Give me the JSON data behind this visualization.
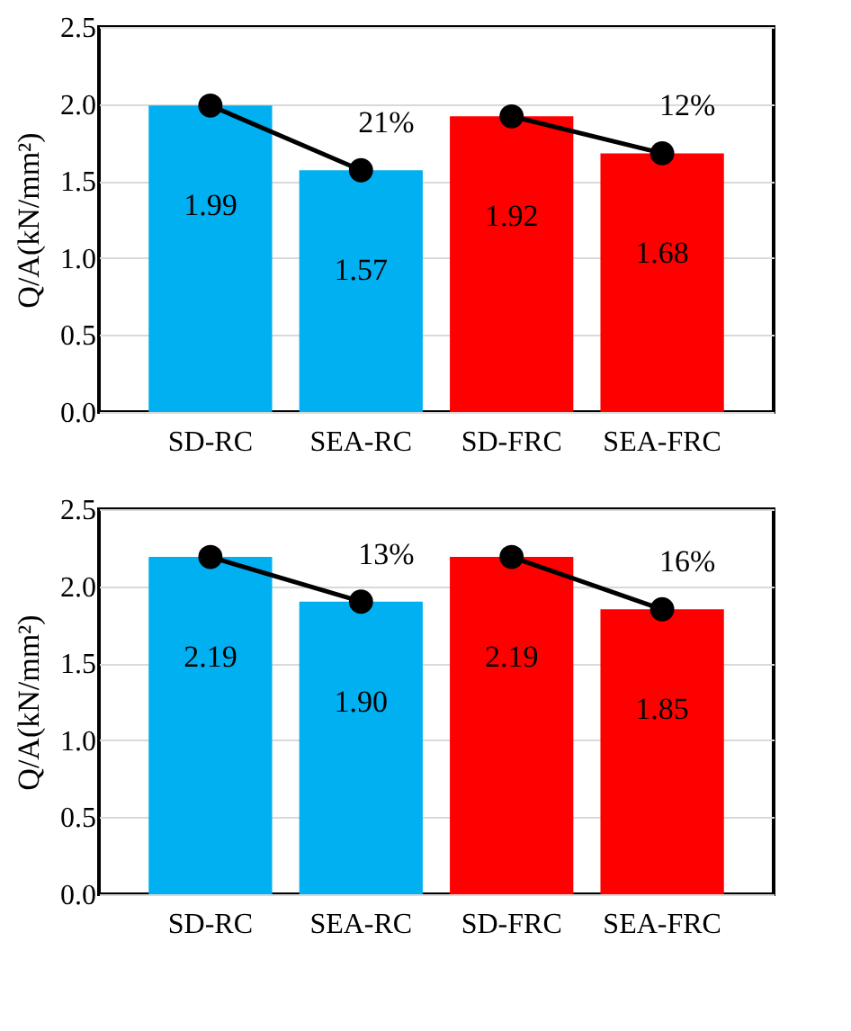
{
  "chart_data": [
    {
      "type": "bar",
      "ylabel": "Q/A(kN/mm²)",
      "categories": [
        "SD-RC",
        "SEA-RC",
        "SD-FRC",
        "SEA-FRC"
      ],
      "values": [
        1.99,
        1.57,
        1.92,
        1.68
      ],
      "value_labels": [
        "1.99",
        "1.57",
        "1.92",
        "1.68"
      ],
      "colors": [
        "#00b0f0",
        "#00b0f0",
        "#ff0000",
        "#ff0000"
      ],
      "ylim": [
        0,
        2.5
      ],
      "yticks": [
        {
          "value": 0,
          "label": "0.0"
        },
        {
          "value": 0.5,
          "label": "0.5"
        },
        {
          "value": 1,
          "label": "1.0"
        },
        {
          "value": 1.5,
          "label": "1.5"
        },
        {
          "value": 2,
          "label": "2.0"
        },
        {
          "value": 2.5,
          "label": "2.5"
        }
      ],
      "grid": "y",
      "marker": "circle",
      "series": [
        {
          "type": "line",
          "color": "#000000",
          "values": [
            1.99,
            1.57,
            null,
            null
          ]
        },
        {
          "type": "line",
          "color": "#000000",
          "values": [
            null,
            null,
            1.92,
            1.68
          ]
        }
      ],
      "annotations": [
        "21%",
        "12%"
      ]
    },
    {
      "type": "bar",
      "ylabel": "Q/A(kN/mm²)",
      "categories": [
        "SD-RC",
        "SEA-RC",
        "SD-FRC",
        "SEA-FRC"
      ],
      "values": [
        2.19,
        1.9,
        2.19,
        1.85
      ],
      "value_labels": [
        "2.19",
        "1.90",
        "2.19",
        "1.85"
      ],
      "colors": [
        "#00b0f0",
        "#00b0f0",
        "#ff0000",
        "#ff0000"
      ],
      "ylim": [
        0,
        2.5
      ],
      "yticks": [
        {
          "value": 0,
          "label": "0.0"
        },
        {
          "value": 0.5,
          "label": "0.5"
        },
        {
          "value": 1,
          "label": "1.0"
        },
        {
          "value": 1.5,
          "label": "1.5"
        },
        {
          "value": 2,
          "label": "2.0"
        },
        {
          "value": 2.5,
          "label": "2.5"
        }
      ],
      "grid": "y",
      "marker": "circle",
      "series": [
        {
          "type": "line",
          "color": "#000000",
          "values": [
            2.19,
            1.9,
            null,
            null
          ]
        },
        {
          "type": "line",
          "color": "#000000",
          "values": [
            null,
            null,
            2.19,
            1.85
          ]
        }
      ],
      "annotations": [
        "13%",
        "16%"
      ]
    }
  ]
}
